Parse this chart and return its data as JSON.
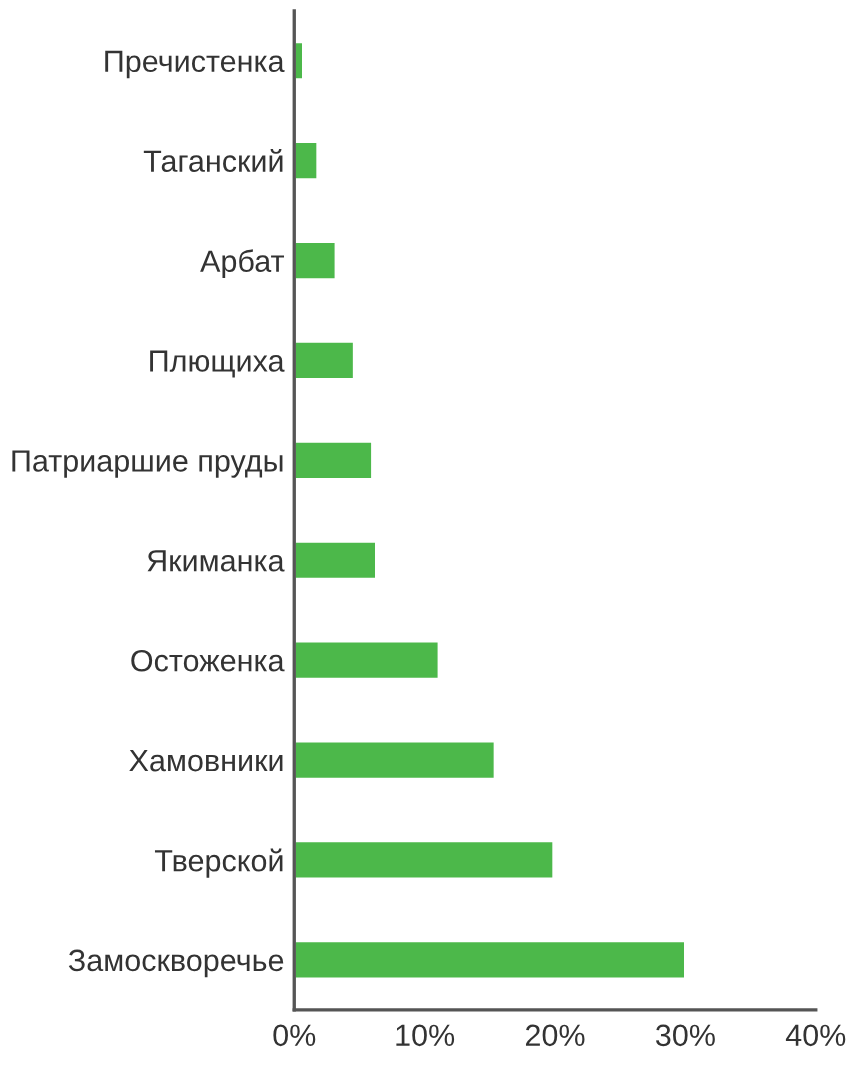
{
  "chart_data": {
    "type": "bar",
    "orientation": "horizontal",
    "categories": [
      "Пречистенка",
      "Таганский",
      "Арбат",
      "Плющиха",
      "Патриаршие пруды",
      "Якиманка",
      "Остоженка",
      "Хамовники",
      "Тверской",
      "Замоскворечье"
    ],
    "series": [
      {
        "color": "#4cb84a",
        "values": [
          0.7,
          1.8,
          3.2,
          4.6,
          6.0,
          6.3,
          11.1,
          15.4,
          19.9,
          30.0
        ]
      }
    ],
    "xlim": [
      0,
      40
    ],
    "xticks": [
      {
        "value": 0,
        "label": "0%"
      },
      {
        "value": 10,
        "label": "10%"
      },
      {
        "value": 20,
        "label": "20%"
      },
      {
        "value": 30,
        "label": "30%"
      },
      {
        "value": 40,
        "label": "40%"
      }
    ],
    "grid": false,
    "legend": false
  }
}
